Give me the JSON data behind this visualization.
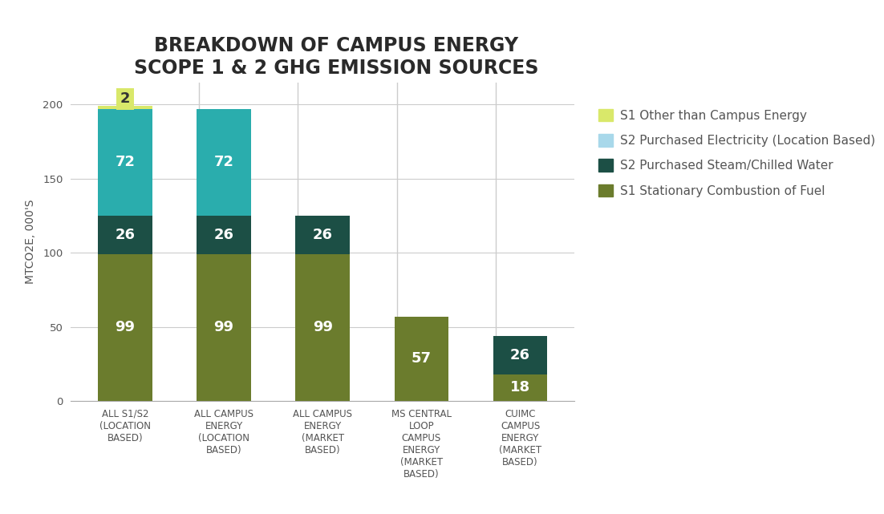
{
  "title": "BREAKDOWN OF CAMPUS ENERGY\nSCOPE 1 & 2 GHG EMISSION SOURCES",
  "ylabel": "MTCO2E, 000'S",
  "categories": [
    "ALL S1/S2\n(LOCATION\nBASED)",
    "ALL CAMPUS\nENERGY\n(LOCATION\nBASED)",
    "ALL CAMPUS\nENERGY\n(MARKET\nBASED)",
    "MS CENTRAL\nLOOP\nCAMPUS\nENERGY\n(MARKET\nBASED)",
    "CUIMC\nCAMPUS\nENERGY\n(MARKET\nBASED)"
  ],
  "series": {
    "S1 Stationary Combustion of Fuel": [
      99,
      99,
      99,
      57,
      18
    ],
    "S2 Purchased Steam/Chilled Water": [
      26,
      26,
      26,
      0,
      26
    ],
    "S2 Purchased Electricity (Location Based)": [
      72,
      72,
      0,
      0,
      0
    ],
    "S1 Other than Campus Energy": [
      2,
      0,
      0,
      0,
      0
    ]
  },
  "colors": {
    "S1 Stationary Combustion of Fuel": "#6b7c2d",
    "S2 Purchased Steam/Chilled Water": "#1c4f45",
    "S2 Purchased Electricity (Location Based)": "#2aadad",
    "S1 Other than Campus Energy": "#d9e86a"
  },
  "legend_colors": {
    "S1 Other than Campus Energy": "#d9e86a",
    "S2 Purchased Electricity (Location Based)": "#a8d8ea",
    "S2 Purchased Steam/Chilled Water": "#1c4f45",
    "S1 Stationary Combustion of Fuel": "#6b7c2d"
  },
  "ylim": [
    0,
    215
  ],
  "yticks": [
    0,
    50,
    100,
    150,
    200
  ],
  "background_color": "#ffffff",
  "bar_width": 0.55,
  "label_fontsize": 13,
  "title_fontsize": 17,
  "legend_fontsize": 11,
  "ylabel_fontsize": 10
}
